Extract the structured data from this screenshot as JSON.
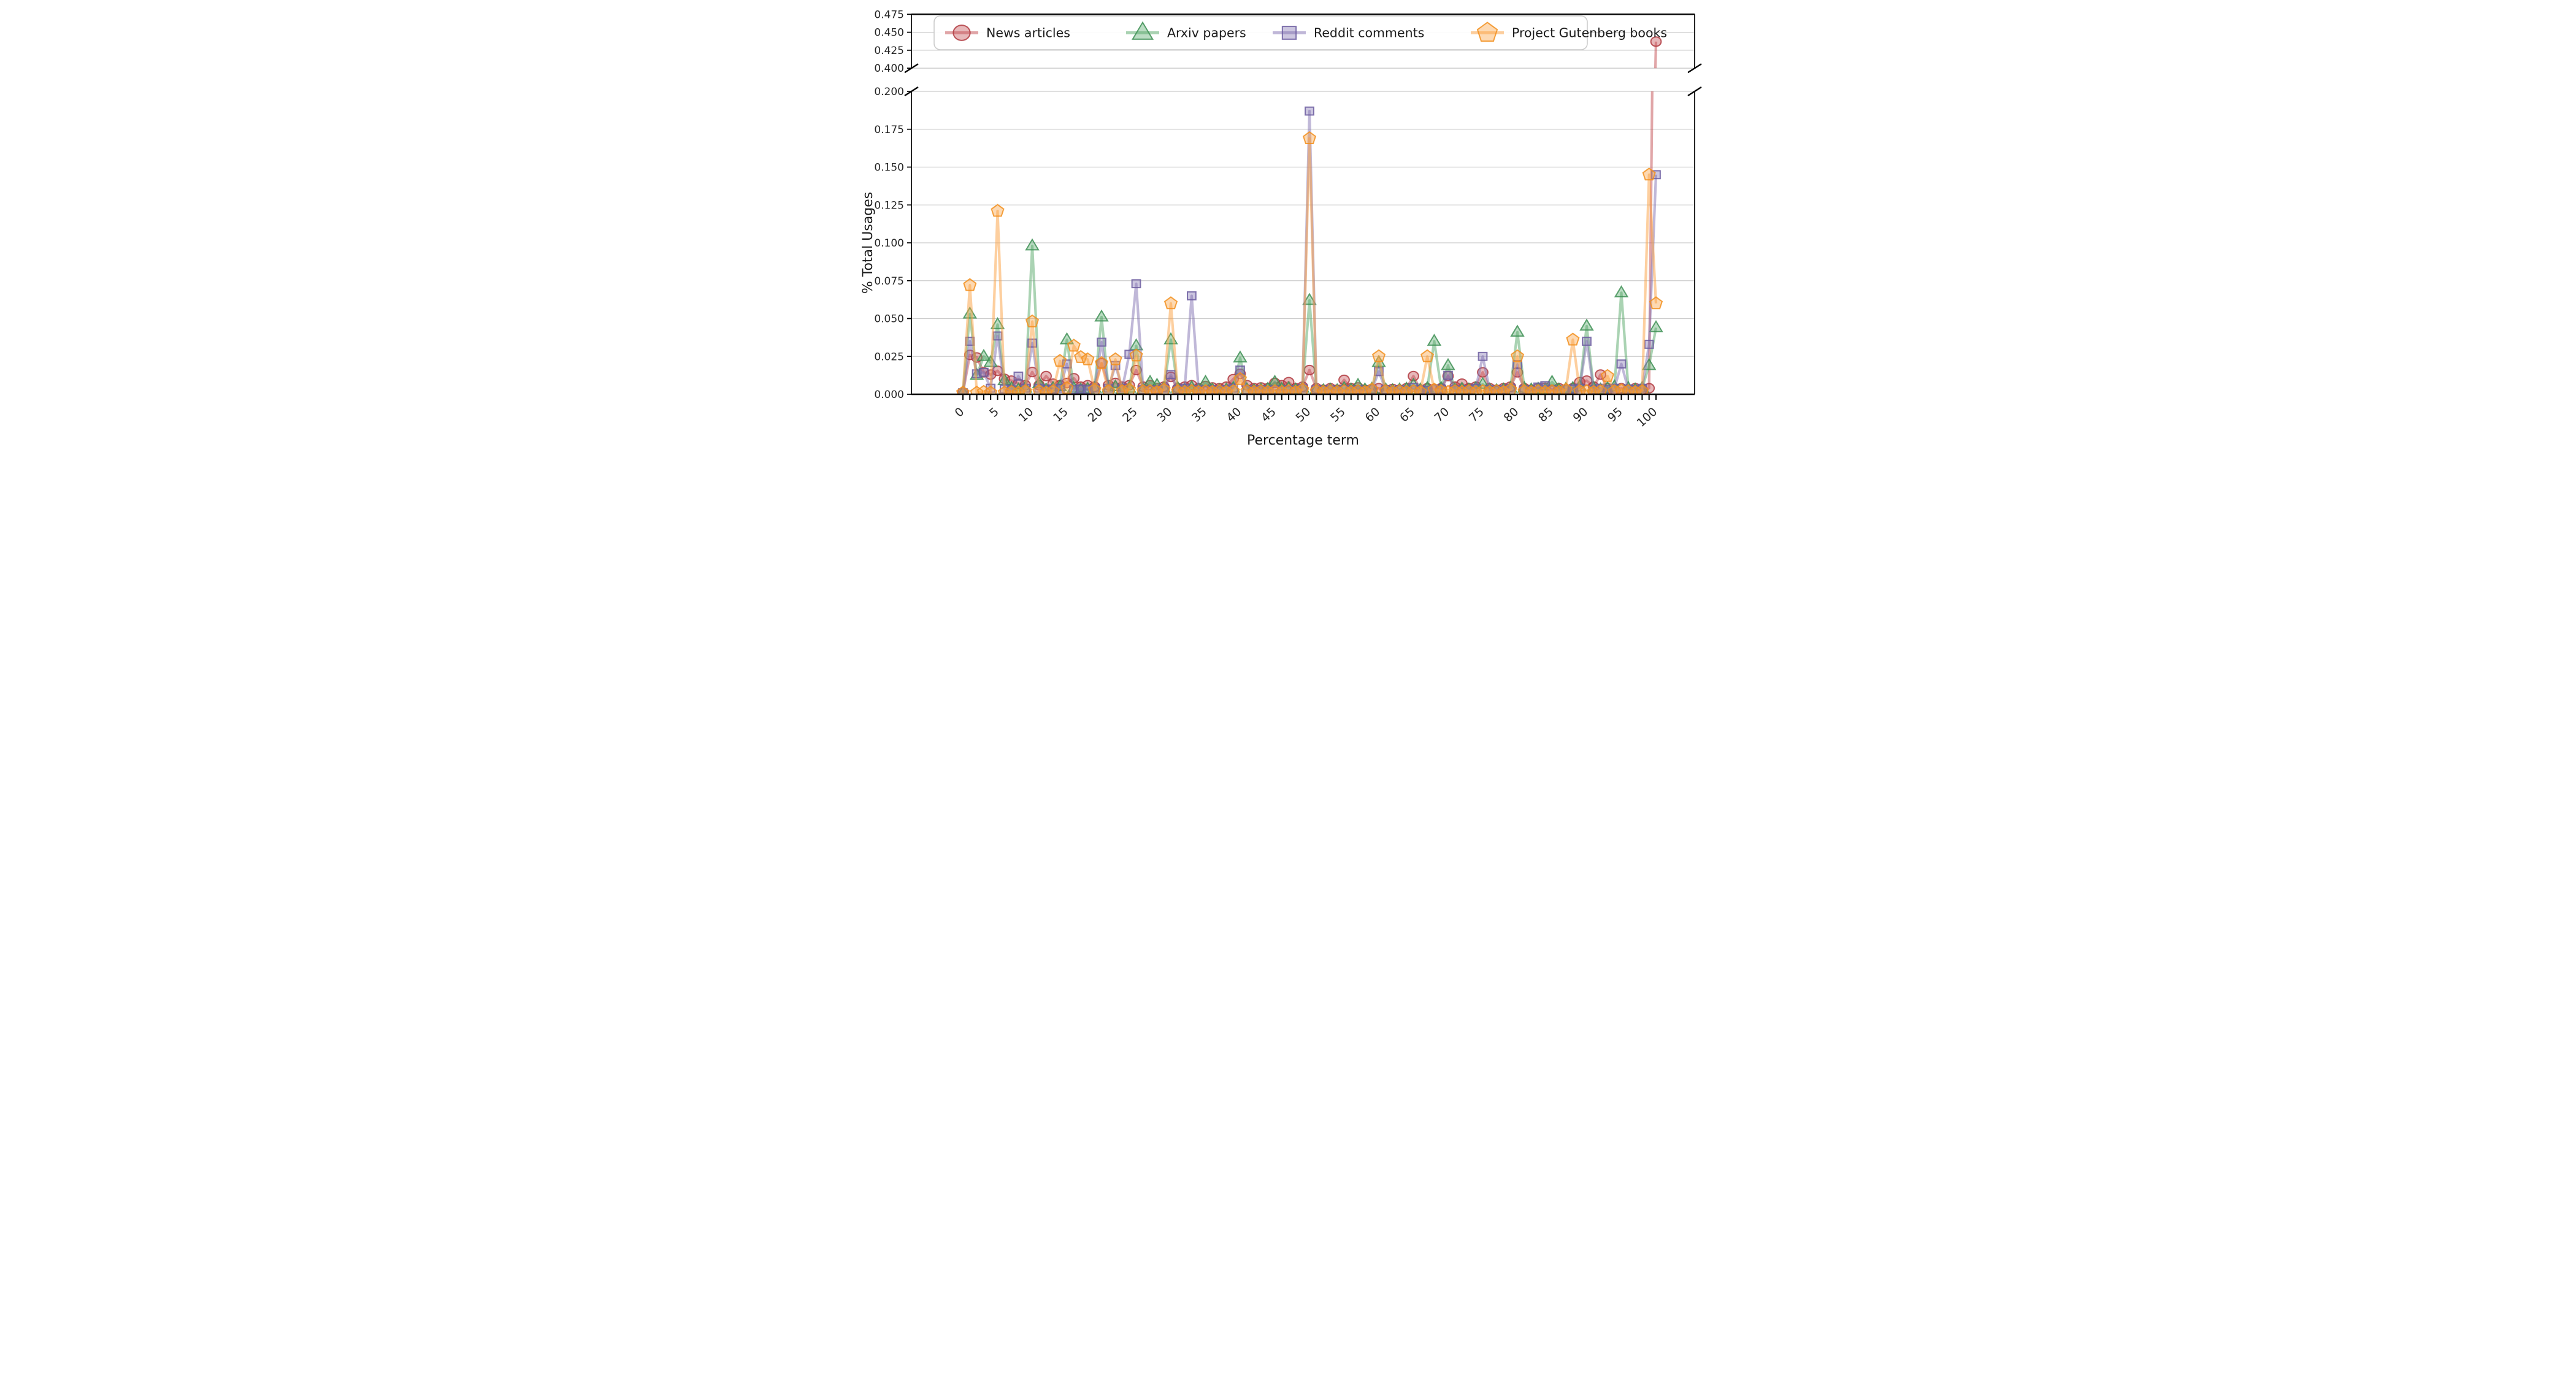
{
  "chart_data": {
    "type": "line",
    "title": "",
    "xlabel": "Percentage term",
    "ylabel": "% Total Usages",
    "x_start": 0,
    "x_step": 1,
    "x_tick_labels": [
      "0",
      "5",
      "10",
      "15",
      "20",
      "25",
      "30",
      "35",
      "40",
      "45",
      "50",
      "55",
      "60",
      "65",
      "70",
      "75",
      "80",
      "85",
      "90",
      "95",
      "100"
    ],
    "x_tick_values": [
      0,
      5,
      10,
      15,
      20,
      25,
      30,
      35,
      40,
      45,
      50,
      55,
      60,
      65,
      70,
      75,
      80,
      85,
      90,
      95,
      100
    ],
    "grid": true,
    "legend_position": "upper left horizontal",
    "broken_axis": {
      "top_ylim": [
        0.4,
        0.475
      ],
      "top_ytick_labels": [
        "0.400",
        "0.425",
        "0.450",
        "0.475"
      ],
      "top_ytick_values": [
        0.4,
        0.425,
        0.45,
        0.475
      ],
      "bottom_ylim": [
        0.0,
        0.2
      ],
      "bottom_ytick_labels": [
        "0.000",
        "0.025",
        "0.050",
        "0.075",
        "0.100",
        "0.125",
        "0.150",
        "0.175",
        "0.200"
      ],
      "bottom_ytick_values": [
        0.0,
        0.025,
        0.05,
        0.075,
        0.1,
        0.125,
        0.15,
        0.175,
        0.2
      ],
      "top_panel_visible_point": {
        "series": "News articles",
        "x": 100,
        "y": 0.437
      }
    },
    "series": [
      {
        "name": "News articles",
        "marker": "circle",
        "color": "#c44e52",
        "edge_color": "#b03a3f",
        "values": [
          0.001,
          0.026,
          0.0243,
          0.0145,
          0.013,
          0.0155,
          0.0102,
          0.009,
          0.007,
          0.006,
          0.0147,
          0.006,
          0.012,
          0.007,
          0.006,
          0.0075,
          0.0106,
          0.005,
          0.006,
          0.005,
          0.0205,
          0.006,
          0.0075,
          0.005,
          0.006,
          0.016,
          0.005,
          0.006,
          0.004,
          0.005,
          0.0115,
          0.004,
          0.005,
          0.006,
          0.004,
          0.0055,
          0.0045,
          0.004,
          0.005,
          0.01,
          0.0135,
          0.006,
          0.004,
          0.0045,
          0.004,
          0.0075,
          0.006,
          0.008,
          0.004,
          0.005,
          0.016,
          0.004,
          0.003,
          0.004,
          0.003,
          0.0095,
          0.004,
          0.0045,
          0.003,
          0.0035,
          0.004,
          0.003,
          0.0035,
          0.003,
          0.004,
          0.012,
          0.003,
          0.004,
          0.0035,
          0.004,
          0.012,
          0.005,
          0.007,
          0.004,
          0.005,
          0.0145,
          0.004,
          0.003,
          0.004,
          0.005,
          0.0145,
          0.004,
          0.003,
          0.004,
          0.0043,
          0.003,
          0.004,
          0.003,
          0.004,
          0.008,
          0.009,
          0.005,
          0.013,
          0.004,
          0.003,
          0.004,
          0.003,
          0.004,
          0.003,
          0.004,
          0.437
        ]
      },
      {
        "name": "Arxiv papers",
        "marker": "triangle",
        "color": "#55a868",
        "edge_color": "#3f9156",
        "values": [
          0.001,
          0.053,
          0.0125,
          0.025,
          0.021,
          0.046,
          0.009,
          0.004,
          0.003,
          0.004,
          0.098,
          0.007,
          0.003,
          0.004,
          0.005,
          0.036,
          0.004,
          0.003,
          0.0035,
          0.004,
          0.051,
          0.004,
          0.005,
          0.003,
          0.004,
          0.032,
          0.003,
          0.008,
          0.006,
          0.004,
          0.036,
          0.004,
          0.003,
          0.0045,
          0.003,
          0.008,
          0.003,
          0.0025,
          0.003,
          0.004,
          0.024,
          0.003,
          0.0025,
          0.003,
          0.0035,
          0.008,
          0.0035,
          0.004,
          0.003,
          0.004,
          0.062,
          0.003,
          0.0025,
          0.003,
          0.0025,
          0.004,
          0.003,
          0.006,
          0.003,
          0.0035,
          0.021,
          0.003,
          0.0025,
          0.003,
          0.0035,
          0.006,
          0.003,
          0.004,
          0.035,
          0.004,
          0.019,
          0.003,
          0.0035,
          0.003,
          0.004,
          0.0066,
          0.003,
          0.0025,
          0.003,
          0.004,
          0.041,
          0.004,
          0.003,
          0.0035,
          0.003,
          0.008,
          0.003,
          0.0035,
          0.004,
          0.005,
          0.045,
          0.004,
          0.003,
          0.004,
          0.005,
          0.067,
          0.004,
          0.003,
          0.004,
          0.019,
          0.044
        ]
      },
      {
        "name": "Reddit comments",
        "marker": "square",
        "color": "#8172b2",
        "edge_color": "#6c5da0",
        "values": [
          0.001,
          0.035,
          0.0135,
          0.0145,
          0.004,
          0.0385,
          0.0035,
          0.003,
          0.012,
          0.004,
          0.0338,
          0.004,
          0.003,
          0.0035,
          0.004,
          0.02,
          0.003,
          0.0035,
          0.003,
          0.004,
          0.0344,
          0.004,
          0.019,
          0.004,
          0.0264,
          0.073,
          0.003,
          0.0025,
          0.003,
          0.004,
          0.013,
          0.003,
          0.004,
          0.065,
          0.003,
          0.0025,
          0.003,
          0.0025,
          0.003,
          0.004,
          0.016,
          0.003,
          0.0025,
          0.003,
          0.0025,
          0.003,
          0.0025,
          0.003,
          0.0025,
          0.004,
          0.187,
          0.003,
          0.0025,
          0.003,
          0.0025,
          0.003,
          0.0025,
          0.003,
          0.0025,
          0.003,
          0.015,
          0.003,
          0.0025,
          0.003,
          0.0025,
          0.0045,
          0.003,
          0.0025,
          0.003,
          0.0035,
          0.0125,
          0.003,
          0.0025,
          0.003,
          0.004,
          0.025,
          0.003,
          0.0025,
          0.003,
          0.004,
          0.0197,
          0.003,
          0.0025,
          0.0048,
          0.0057,
          0.003,
          0.0025,
          0.003,
          0.0035,
          0.004,
          0.035,
          0.003,
          0.004,
          0.003,
          0.004,
          0.02,
          0.0035,
          0.003,
          0.004,
          0.033,
          0.145
        ]
      },
      {
        "name": "Project Gutenberg books",
        "marker": "pentagon",
        "color": "#fba03f",
        "edge_color": "#f28f1d",
        "values": [
          0.001,
          0.072,
          0.001,
          0.0015,
          0.001,
          0.121,
          0.001,
          0.0015,
          0.001,
          0.002,
          0.048,
          0.002,
          0.001,
          0.002,
          0.022,
          0.004,
          0.032,
          0.0245,
          0.023,
          0.003,
          0.0205,
          0.002,
          0.023,
          0.002,
          0.003,
          0.0255,
          0.002,
          0.002,
          0.0015,
          0.003,
          0.06,
          0.002,
          0.0015,
          0.002,
          0.0015,
          0.002,
          0.0015,
          0.002,
          0.0015,
          0.002,
          0.01,
          0.002,
          0.0015,
          0.002,
          0.0015,
          0.002,
          0.0015,
          0.002,
          0.0015,
          0.003,
          0.169,
          0.002,
          0.0015,
          0.002,
          0.0015,
          0.002,
          0.0015,
          0.002,
          0.0015,
          0.003,
          0.025,
          0.002,
          0.0015,
          0.002,
          0.0015,
          0.002,
          0.0015,
          0.025,
          0.003,
          0.002,
          0.0015,
          0.002,
          0.0015,
          0.002,
          0.0015,
          0.002,
          0.0015,
          0.002,
          0.0015,
          0.003,
          0.025,
          0.002,
          0.0015,
          0.002,
          0.0015,
          0.002,
          0.0015,
          0.003,
          0.036,
          0.002,
          0.002,
          0.0015,
          0.002,
          0.012,
          0.002,
          0.0025,
          0.002,
          0.0015,
          0.002,
          0.145,
          0.06
        ]
      }
    ],
    "style": {
      "background": "#ffffff",
      "grid_color": "#cccccc",
      "spine_color": "#000000",
      "line_opacity": 0.5,
      "marker_fill_opacity": 0.4,
      "marker_edge_opacity": 0.85
    }
  }
}
